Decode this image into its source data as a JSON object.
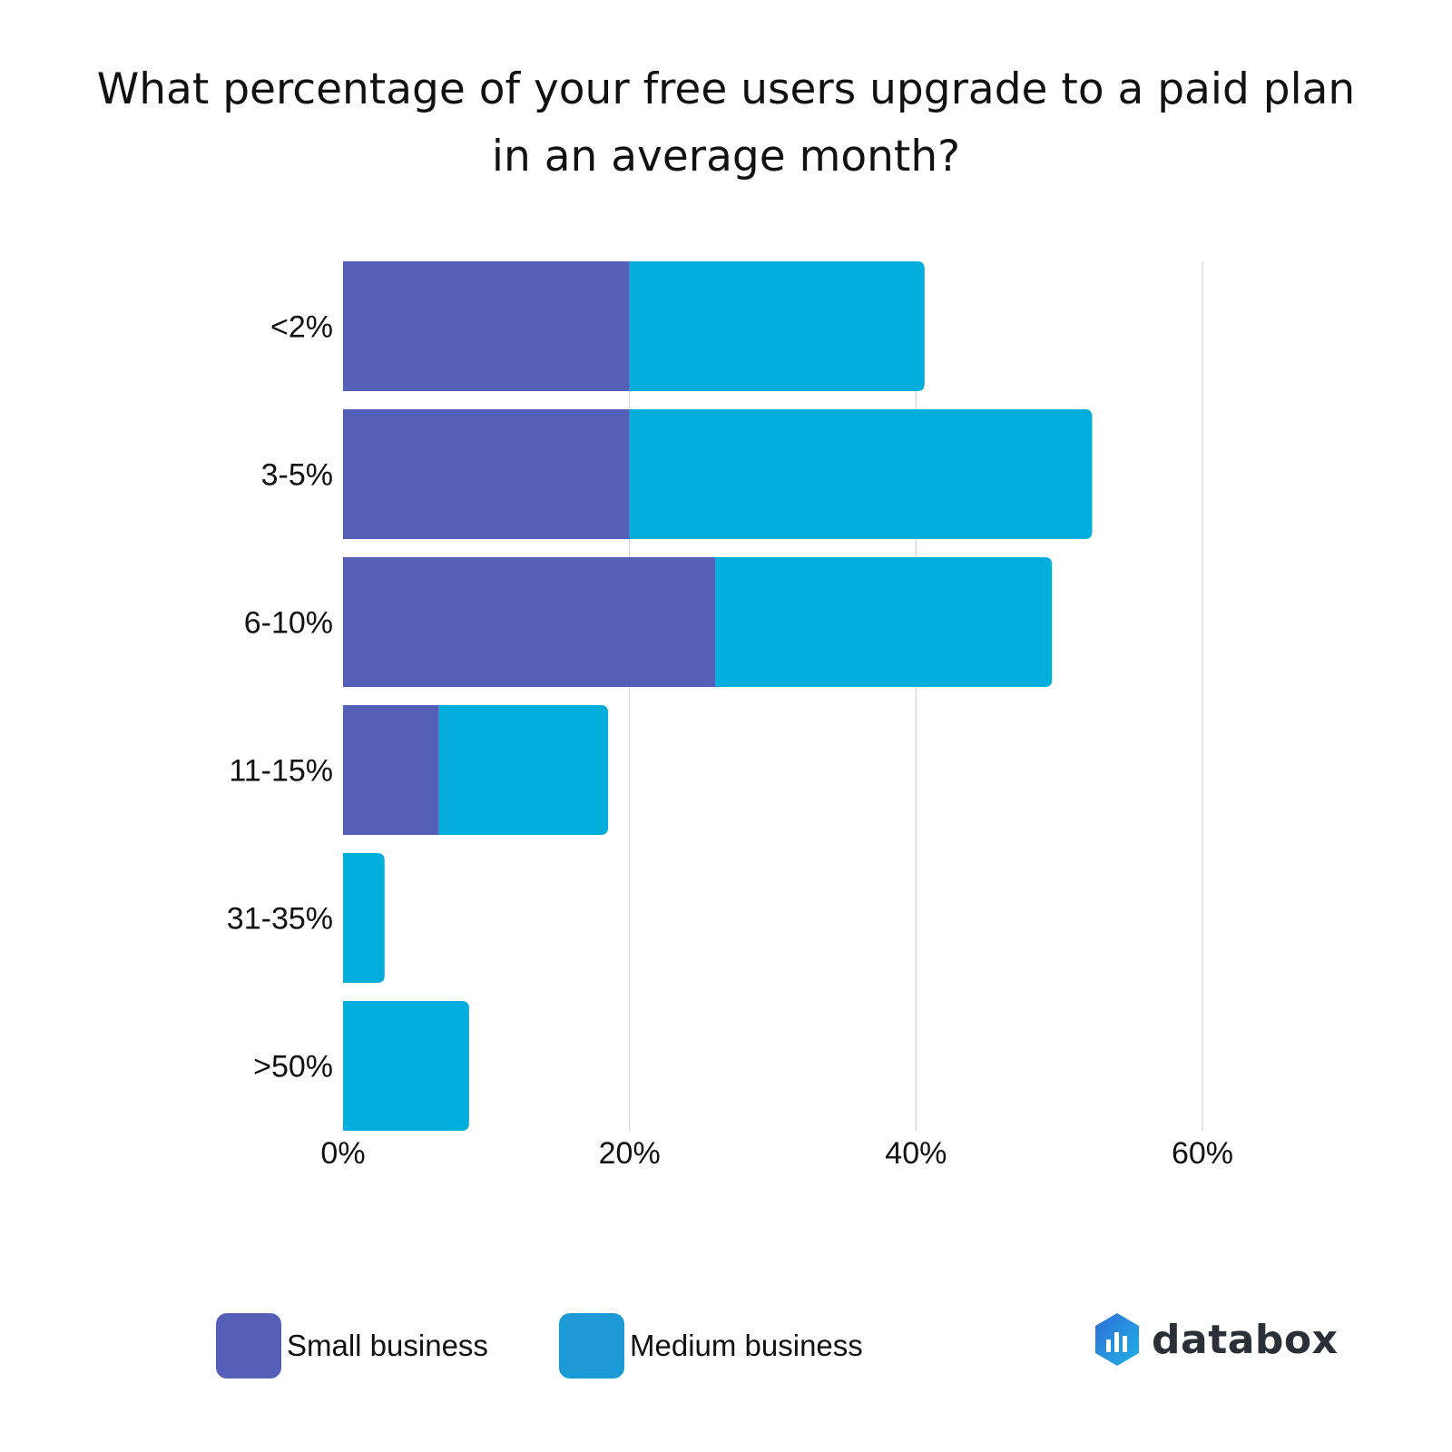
{
  "chart_data": {
    "type": "bar",
    "orientation": "horizontal",
    "stacked": true,
    "title": "What percentage of your free users upgrade to a paid plan in an average month?",
    "categories": [
      "<2%",
      "3-5%",
      "6-10%",
      "11-15%",
      "31-35%",
      ">50%"
    ],
    "series": [
      {
        "name": "Small business",
        "color": "#5460b8",
        "values": [
          20,
          20,
          26,
          6.7,
          0,
          0
        ]
      },
      {
        "name": "Medium business",
        "color": "#03aedc",
        "values": [
          20.6,
          32.3,
          23.5,
          11.8,
          2.9,
          8.8
        ]
      }
    ],
    "xlim": [
      0,
      60
    ],
    "xticks": [
      "0%",
      "20%",
      "40%",
      "60%"
    ],
    "grid": true,
    "legend_position": "bottom-left"
  },
  "legend": {
    "small_label": "Small business",
    "small_color": "#5460b8",
    "medium_label": "Medium business",
    "medium_color": "#1c9ad6"
  },
  "brand": {
    "name": "databox",
    "icon": "databox-logo-icon"
  }
}
